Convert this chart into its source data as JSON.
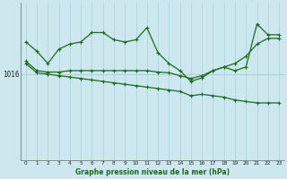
{
  "title": "Graphe pression niveau de la mer (hPa)",
  "background_color": "#cce8ee",
  "grid_color": "#aacfd8",
  "line_color": "#1a6b1a",
  "xlim": [
    -0.5,
    23.5
  ],
  "ylim": [
    1004,
    1026
  ],
  "ytick_val": 1016,
  "series1": [
    1020.5,
    1019.2,
    1017.5,
    1019.5,
    1020.2,
    1020.5,
    1021.8,
    1021.8,
    1020.8,
    1020.5,
    1020.8,
    1022.5,
    1019.0,
    1017.5,
    1016.5,
    1015.0,
    1015.5,
    1016.5,
    1017.0,
    1016.5,
    1017.0,
    1023.0,
    1021.5,
    1021.5
  ],
  "series2": [
    1017.8,
    1016.5,
    1016.3,
    1016.3,
    1016.5,
    1016.5,
    1016.5,
    1016.5,
    1016.5,
    1016.5,
    1016.5,
    1016.5,
    1016.3,
    1016.2,
    1015.8,
    1015.4,
    1015.8,
    1016.5,
    1017.0,
    1017.5,
    1018.5,
    1020.2,
    1021.0,
    1021.0
  ],
  "series3": [
    1017.5,
    1016.2,
    1016.0,
    1015.8,
    1015.6,
    1015.4,
    1015.2,
    1015.0,
    1014.8,
    1014.6,
    1014.4,
    1014.2,
    1014.0,
    1013.8,
    1013.6,
    1013.0,
    1013.2,
    1013.0,
    1012.8,
    1012.4,
    1012.2,
    1012.0,
    1012.0,
    1012.0
  ]
}
